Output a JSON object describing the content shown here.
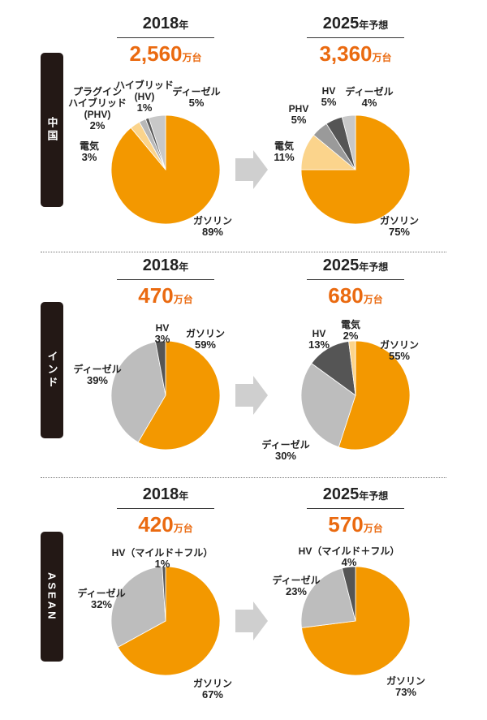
{
  "regions": [
    "中国",
    "インド",
    "ASEAN"
  ],
  "chart_data": [
    {
      "type": "pie",
      "title": "2018",
      "title_suffix": "年",
      "total": "2,560",
      "total_unit": "万台",
      "categories": [
        "ガソリン",
        "電気",
        "プラグイン\nハイブリッド\n(PHV)",
        "ハイブリッド\n(HV)",
        "ディーゼル"
      ],
      "values": [
        89,
        3,
        2,
        1,
        5
      ],
      "value_labels": [
        "89%",
        "3%",
        "2%",
        "1%",
        "5%"
      ],
      "colors": [
        "#f39800",
        "#fbd48c",
        "#b8b8b8",
        "#5a5a5a",
        "#c8c8c8"
      ]
    },
    {
      "type": "pie",
      "title": "2025",
      "title_suffix": "年予想",
      "total": "3,360",
      "total_unit": "万台",
      "categories": [
        "ガソリン",
        "電気",
        "PHV",
        "HV",
        "ディーゼル"
      ],
      "values": [
        75,
        11,
        5,
        5,
        4
      ],
      "value_labels": [
        "75%",
        "11%",
        "5%",
        "5%",
        "4%"
      ],
      "colors": [
        "#f39800",
        "#fbd48c",
        "#9a9a9a",
        "#555555",
        "#c8c8c8"
      ]
    },
    {
      "type": "pie",
      "title": "2018",
      "title_suffix": "年",
      "total": "470",
      "total_unit": "万台",
      "categories": [
        "ガソリン",
        "ディーゼル",
        "HV"
      ],
      "values": [
        59,
        39,
        3
      ],
      "value_labels": [
        "59%",
        "39%",
        "3%"
      ],
      "colors": [
        "#f39800",
        "#bdbdbd",
        "#555555"
      ]
    },
    {
      "type": "pie",
      "title": "2025",
      "title_suffix": "年予想",
      "total": "680",
      "total_unit": "万台",
      "categories": [
        "ガソリン",
        "ディーゼル",
        "HV",
        "電気"
      ],
      "values": [
        55,
        30,
        13,
        2
      ],
      "value_labels": [
        "55%",
        "30%",
        "13%",
        "2%"
      ],
      "colors": [
        "#f39800",
        "#bdbdbd",
        "#555555",
        "#fbd48c"
      ]
    },
    {
      "type": "pie",
      "title": "2018",
      "title_suffix": "年",
      "total": "420",
      "total_unit": "万台",
      "categories": [
        "ガソリン",
        "ディーゼル",
        "HV（マイルド＋フル）"
      ],
      "values": [
        67,
        32,
        1
      ],
      "value_labels": [
        "67%",
        "32%",
        "1%"
      ],
      "colors": [
        "#f39800",
        "#bdbdbd",
        "#555555"
      ]
    },
    {
      "type": "pie",
      "title": "2025",
      "title_suffix": "年予想",
      "total": "570",
      "total_unit": "万台",
      "categories": [
        "ガソリン",
        "ディーゼル",
        "HV（マイルド＋フル）"
      ],
      "values": [
        73,
        23,
        4
      ],
      "value_labels": [
        "73%",
        "23%",
        "4%"
      ],
      "colors": [
        "#f39800",
        "#bdbdbd",
        "#555555"
      ]
    }
  ]
}
